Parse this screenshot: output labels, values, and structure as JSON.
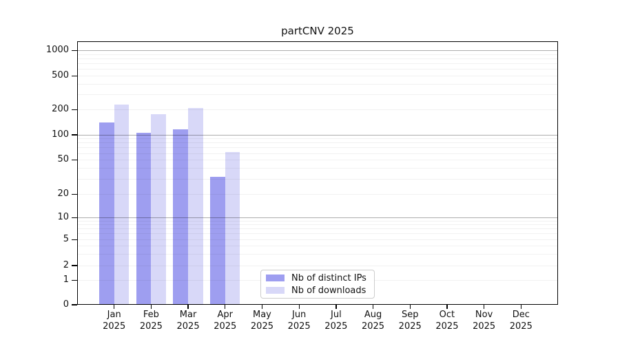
{
  "chart_data": {
    "type": "bar",
    "title": "partCNV 2025",
    "categories": [
      "Jan",
      "Feb",
      "Mar",
      "Apr",
      "May",
      "Jun",
      "Jul",
      "Aug",
      "Sep",
      "Oct",
      "Nov",
      "Dec"
    ],
    "year_label": "2025",
    "series": [
      {
        "name": "Nb of distinct IPs",
        "color": "#9e9ef0",
        "values": [
          140,
          106,
          116,
          32,
          0,
          0,
          0,
          0,
          0,
          0,
          0,
          0
        ]
      },
      {
        "name": "Nb of downloads",
        "color": "#d8d8f8",
        "values": [
          228,
          177,
          208,
          62,
          0,
          0,
          0,
          0,
          0,
          0,
          0,
          0
        ]
      }
    ],
    "xlabel": "",
    "ylabel": "",
    "yticks": [
      0,
      1,
      2,
      5,
      10,
      20,
      50,
      100,
      200,
      500,
      1000
    ],
    "yscale": "log (symlog: 0 shown at baseline)",
    "ylim": [
      0,
      1300
    ],
    "grid": true,
    "legend_position": "lower center, inside plot"
  }
}
